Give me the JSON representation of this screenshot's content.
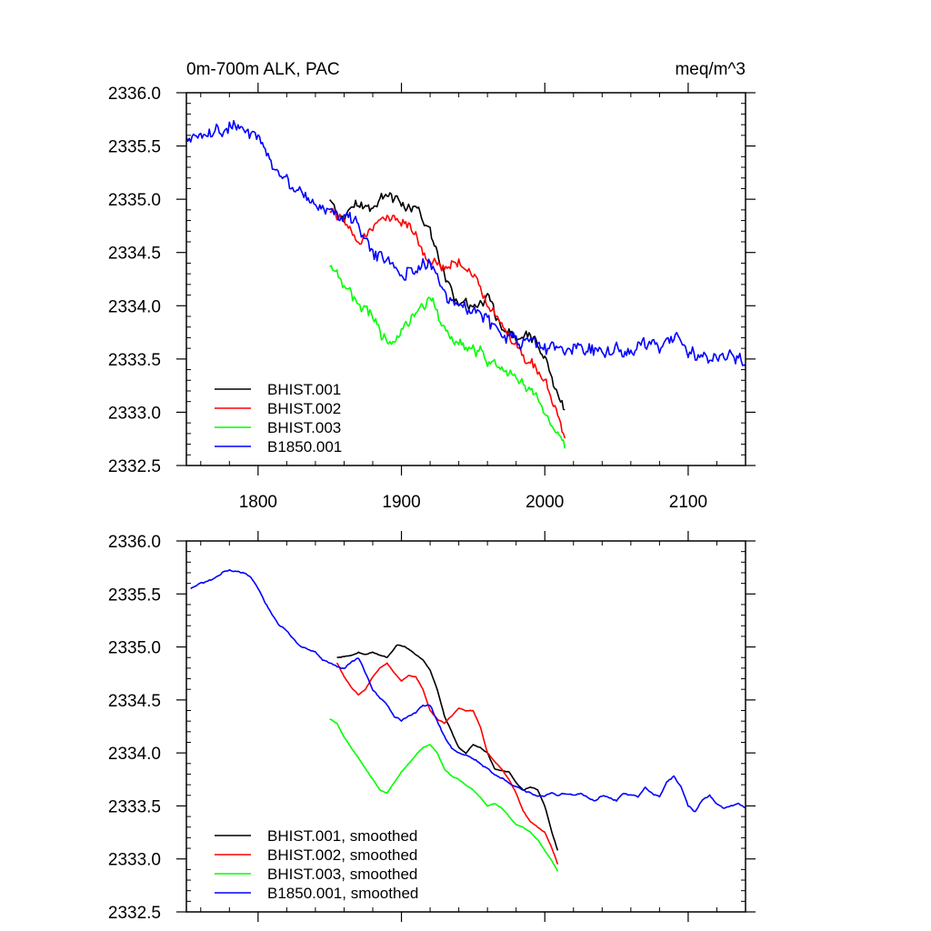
{
  "chart_data": [
    {
      "type": "line",
      "title_left": "0m-700m ALK, PAC",
      "title_right": "meq/m^3",
      "xlim": [
        1750,
        2140
      ],
      "ylim": [
        2332.5,
        2336.0
      ],
      "x_ticks": [
        1800,
        1900,
        2000,
        2100
      ],
      "x_tick_labels": [
        "1800",
        "1900",
        "2000",
        "2100"
      ],
      "y_ticks": [
        2332.5,
        2333.0,
        2333.5,
        2334.0,
        2334.5,
        2335.0,
        2335.5,
        2336.0
      ],
      "y_tick_labels": [
        "2332.5",
        "2333.0",
        "2333.5",
        "2334.0",
        "2334.5",
        "2335.0",
        "2335.5",
        "2336.0"
      ],
      "legend_position": "bottom-left",
      "series": [
        {
          "name": "BHIST.001",
          "color": "#000000",
          "noise": 0.08,
          "x": [
            1850,
            1860,
            1870,
            1880,
            1890,
            1900,
            1910,
            1920,
            1930,
            1940,
            1950,
            1960,
            1970,
            1980,
            1990,
            2000,
            2005,
            2010,
            2014
          ],
          "y": [
            2334.95,
            2334.85,
            2334.95,
            2334.9,
            2335.05,
            2334.95,
            2334.95,
            2334.7,
            2334.3,
            2334.0,
            2334.0,
            2334.1,
            2333.8,
            2333.7,
            2333.75,
            2333.5,
            2333.3,
            2333.1,
            2333.0
          ]
        },
        {
          "name": "BHIST.002",
          "color": "#ff0000",
          "noise": 0.08,
          "x": [
            1850,
            1860,
            1870,
            1880,
            1890,
            1900,
            1910,
            1920,
            1930,
            1940,
            1950,
            1960,
            1970,
            1980,
            1990,
            2000,
            2005,
            2010,
            2014
          ],
          "y": [
            2334.9,
            2334.75,
            2334.6,
            2334.75,
            2334.85,
            2334.8,
            2334.7,
            2334.4,
            2334.35,
            2334.45,
            2334.3,
            2334.0,
            2333.8,
            2333.6,
            2333.45,
            2333.3,
            2333.1,
            2332.95,
            2332.8
          ]
        },
        {
          "name": "BHIST.003",
          "color": "#00ff00",
          "noise": 0.09,
          "x": [
            1850,
            1860,
            1870,
            1880,
            1890,
            1900,
            1910,
            1920,
            1930,
            1940,
            1950,
            1960,
            1970,
            1980,
            1990,
            2000,
            2005,
            2010,
            2014
          ],
          "y": [
            2334.4,
            2334.2,
            2334.05,
            2333.9,
            2333.65,
            2333.75,
            2333.95,
            2334.05,
            2333.8,
            2333.65,
            2333.6,
            2333.5,
            2333.4,
            2333.3,
            2333.2,
            2333.05,
            2332.9,
            2332.8,
            2332.7
          ]
        },
        {
          "name": "B1850.001",
          "color": "#0000ff",
          "noise": 0.1,
          "x": [
            1750,
            1760,
            1770,
            1780,
            1790,
            1800,
            1810,
            1820,
            1830,
            1840,
            1850,
            1860,
            1870,
            1880,
            1890,
            1900,
            1910,
            1920,
            1930,
            1940,
            1950,
            1960,
            1970,
            1980,
            1990,
            2000,
            2010,
            2020,
            2030,
            2040,
            2050,
            2060,
            2070,
            2080,
            2090,
            2100,
            2110,
            2120,
            2130,
            2140
          ],
          "y": [
            2335.55,
            2335.6,
            2335.65,
            2335.7,
            2335.7,
            2335.6,
            2335.35,
            2335.15,
            2335.0,
            2334.95,
            2334.9,
            2334.85,
            2334.75,
            2334.5,
            2334.45,
            2334.3,
            2334.35,
            2334.4,
            2334.1,
            2334.0,
            2333.95,
            2333.85,
            2333.75,
            2333.7,
            2333.65,
            2333.6,
            2333.6,
            2333.62,
            2333.6,
            2333.55,
            2333.6,
            2333.6,
            2333.65,
            2333.6,
            2333.75,
            2333.55,
            2333.5,
            2333.55,
            2333.5,
            2333.45
          ]
        }
      ]
    },
    {
      "type": "line",
      "xlim": [
        1750,
        2140
      ],
      "ylim": [
        2332.5,
        2336.0
      ],
      "x_ticks": [
        1800,
        1900,
        2000,
        2100
      ],
      "y_ticks": [
        2332.5,
        2333.0,
        2333.5,
        2334.0,
        2334.5,
        2335.0,
        2335.5,
        2336.0
      ],
      "y_tick_labels": [
        "2332.5",
        "2333.0",
        "2333.5",
        "2334.0",
        "2334.5",
        "2335.0",
        "2335.5",
        "2336.0"
      ],
      "legend_position": "bottom-left",
      "series": [
        {
          "name": "BHIST.001, smoothed",
          "color": "#000000",
          "noise": 0.006,
          "x": [
            1855,
            1865,
            1870,
            1875,
            1880,
            1890,
            1897,
            1903,
            1910,
            1915,
            1920,
            1925,
            1930,
            1935,
            1940,
            1945,
            1950,
            1955,
            1960,
            1965,
            1970,
            1975,
            1980,
            1985,
            1990,
            1995,
            2000,
            2005,
            2009
          ],
          "y": [
            2334.9,
            2334.92,
            2334.95,
            2334.93,
            2334.95,
            2334.9,
            2335.02,
            2335.0,
            2334.93,
            2334.88,
            2334.78,
            2334.6,
            2334.35,
            2334.2,
            2334.05,
            2334.0,
            2334.08,
            2334.05,
            2334.0,
            2333.85,
            2333.83,
            2333.82,
            2333.72,
            2333.65,
            2333.68,
            2333.65,
            2333.5,
            2333.25,
            2333.08
          ]
        },
        {
          "name": "BHIST.002, smoothed",
          "color": "#ff0000",
          "noise": 0.006,
          "x": [
            1855,
            1860,
            1865,
            1870,
            1875,
            1880,
            1885,
            1890,
            1895,
            1900,
            1905,
            1910,
            1915,
            1920,
            1925,
            1930,
            1935,
            1940,
            1945,
            1950,
            1955,
            1960,
            1965,
            1970,
            1975,
            1980,
            1985,
            1990,
            1995,
            2000,
            2005,
            2009
          ],
          "y": [
            2334.85,
            2334.72,
            2334.62,
            2334.55,
            2334.6,
            2334.72,
            2334.8,
            2334.85,
            2334.75,
            2334.68,
            2334.73,
            2334.72,
            2334.6,
            2334.4,
            2334.32,
            2334.28,
            2334.35,
            2334.42,
            2334.4,
            2334.4,
            2334.25,
            2334.0,
            2333.92,
            2333.85,
            2333.75,
            2333.62,
            2333.45,
            2333.35,
            2333.3,
            2333.25,
            2333.1,
            2332.95
          ]
        },
        {
          "name": "BHIST.003, smoothed",
          "color": "#00ff00",
          "noise": 0.006,
          "x": [
            1850,
            1855,
            1860,
            1865,
            1870,
            1875,
            1880,
            1885,
            1890,
            1895,
            1900,
            1905,
            1910,
            1915,
            1920,
            1925,
            1930,
            1935,
            1940,
            1945,
            1950,
            1955,
            1960,
            1965,
            1970,
            1975,
            1980,
            1985,
            1990,
            1995,
            2000,
            2005,
            2009
          ],
          "y": [
            2334.32,
            2334.28,
            2334.15,
            2334.05,
            2333.95,
            2333.85,
            2333.75,
            2333.65,
            2333.62,
            2333.72,
            2333.82,
            2333.9,
            2333.98,
            2334.05,
            2334.08,
            2334.0,
            2333.85,
            2333.78,
            2333.75,
            2333.7,
            2333.65,
            2333.58,
            2333.5,
            2333.52,
            2333.48,
            2333.4,
            2333.32,
            2333.3,
            2333.25,
            2333.18,
            2333.08,
            2332.98,
            2332.88
          ]
        },
        {
          "name": "B1850.001, smoothed",
          "color": "#0000ff",
          "noise": 0.012,
          "x": [
            1753,
            1760,
            1770,
            1775,
            1780,
            1790,
            1795,
            1800,
            1805,
            1810,
            1815,
            1820,
            1825,
            1830,
            1835,
            1840,
            1845,
            1850,
            1855,
            1860,
            1865,
            1870,
            1875,
            1880,
            1885,
            1890,
            1895,
            1900,
            1905,
            1910,
            1915,
            1920,
            1925,
            1930,
            1935,
            1940,
            1945,
            1950,
            1955,
            1960,
            1965,
            1970,
            1975,
            1980,
            1985,
            1990,
            1995,
            2000,
            2005,
            2010,
            2015,
            2020,
            2025,
            2030,
            2035,
            2040,
            2045,
            2050,
            2055,
            2060,
            2065,
            2070,
            2075,
            2080,
            2085,
            2090,
            2095,
            2100,
            2105,
            2110,
            2115,
            2120,
            2125,
            2130,
            2135,
            2140
          ],
          "y": [
            2335.55,
            2335.6,
            2335.65,
            2335.7,
            2335.72,
            2335.7,
            2335.66,
            2335.55,
            2335.42,
            2335.3,
            2335.2,
            2335.15,
            2335.07,
            2335.0,
            2334.98,
            2334.95,
            2334.88,
            2334.85,
            2334.82,
            2334.8,
            2334.85,
            2334.9,
            2334.75,
            2334.6,
            2334.52,
            2334.45,
            2334.35,
            2334.3,
            2334.35,
            2334.38,
            2334.45,
            2334.45,
            2334.3,
            2334.15,
            2334.05,
            2334.0,
            2333.98,
            2333.95,
            2333.9,
            2333.85,
            2333.8,
            2333.76,
            2333.72,
            2333.68,
            2333.65,
            2333.62,
            2333.6,
            2333.6,
            2333.62,
            2333.6,
            2333.62,
            2333.6,
            2333.62,
            2333.58,
            2333.55,
            2333.6,
            2333.58,
            2333.55,
            2333.62,
            2333.6,
            2333.58,
            2333.68,
            2333.62,
            2333.58,
            2333.72,
            2333.78,
            2333.68,
            2333.5,
            2333.45,
            2333.55,
            2333.6,
            2333.52,
            2333.48,
            2333.5,
            2333.52,
            2333.48
          ]
        }
      ]
    }
  ]
}
